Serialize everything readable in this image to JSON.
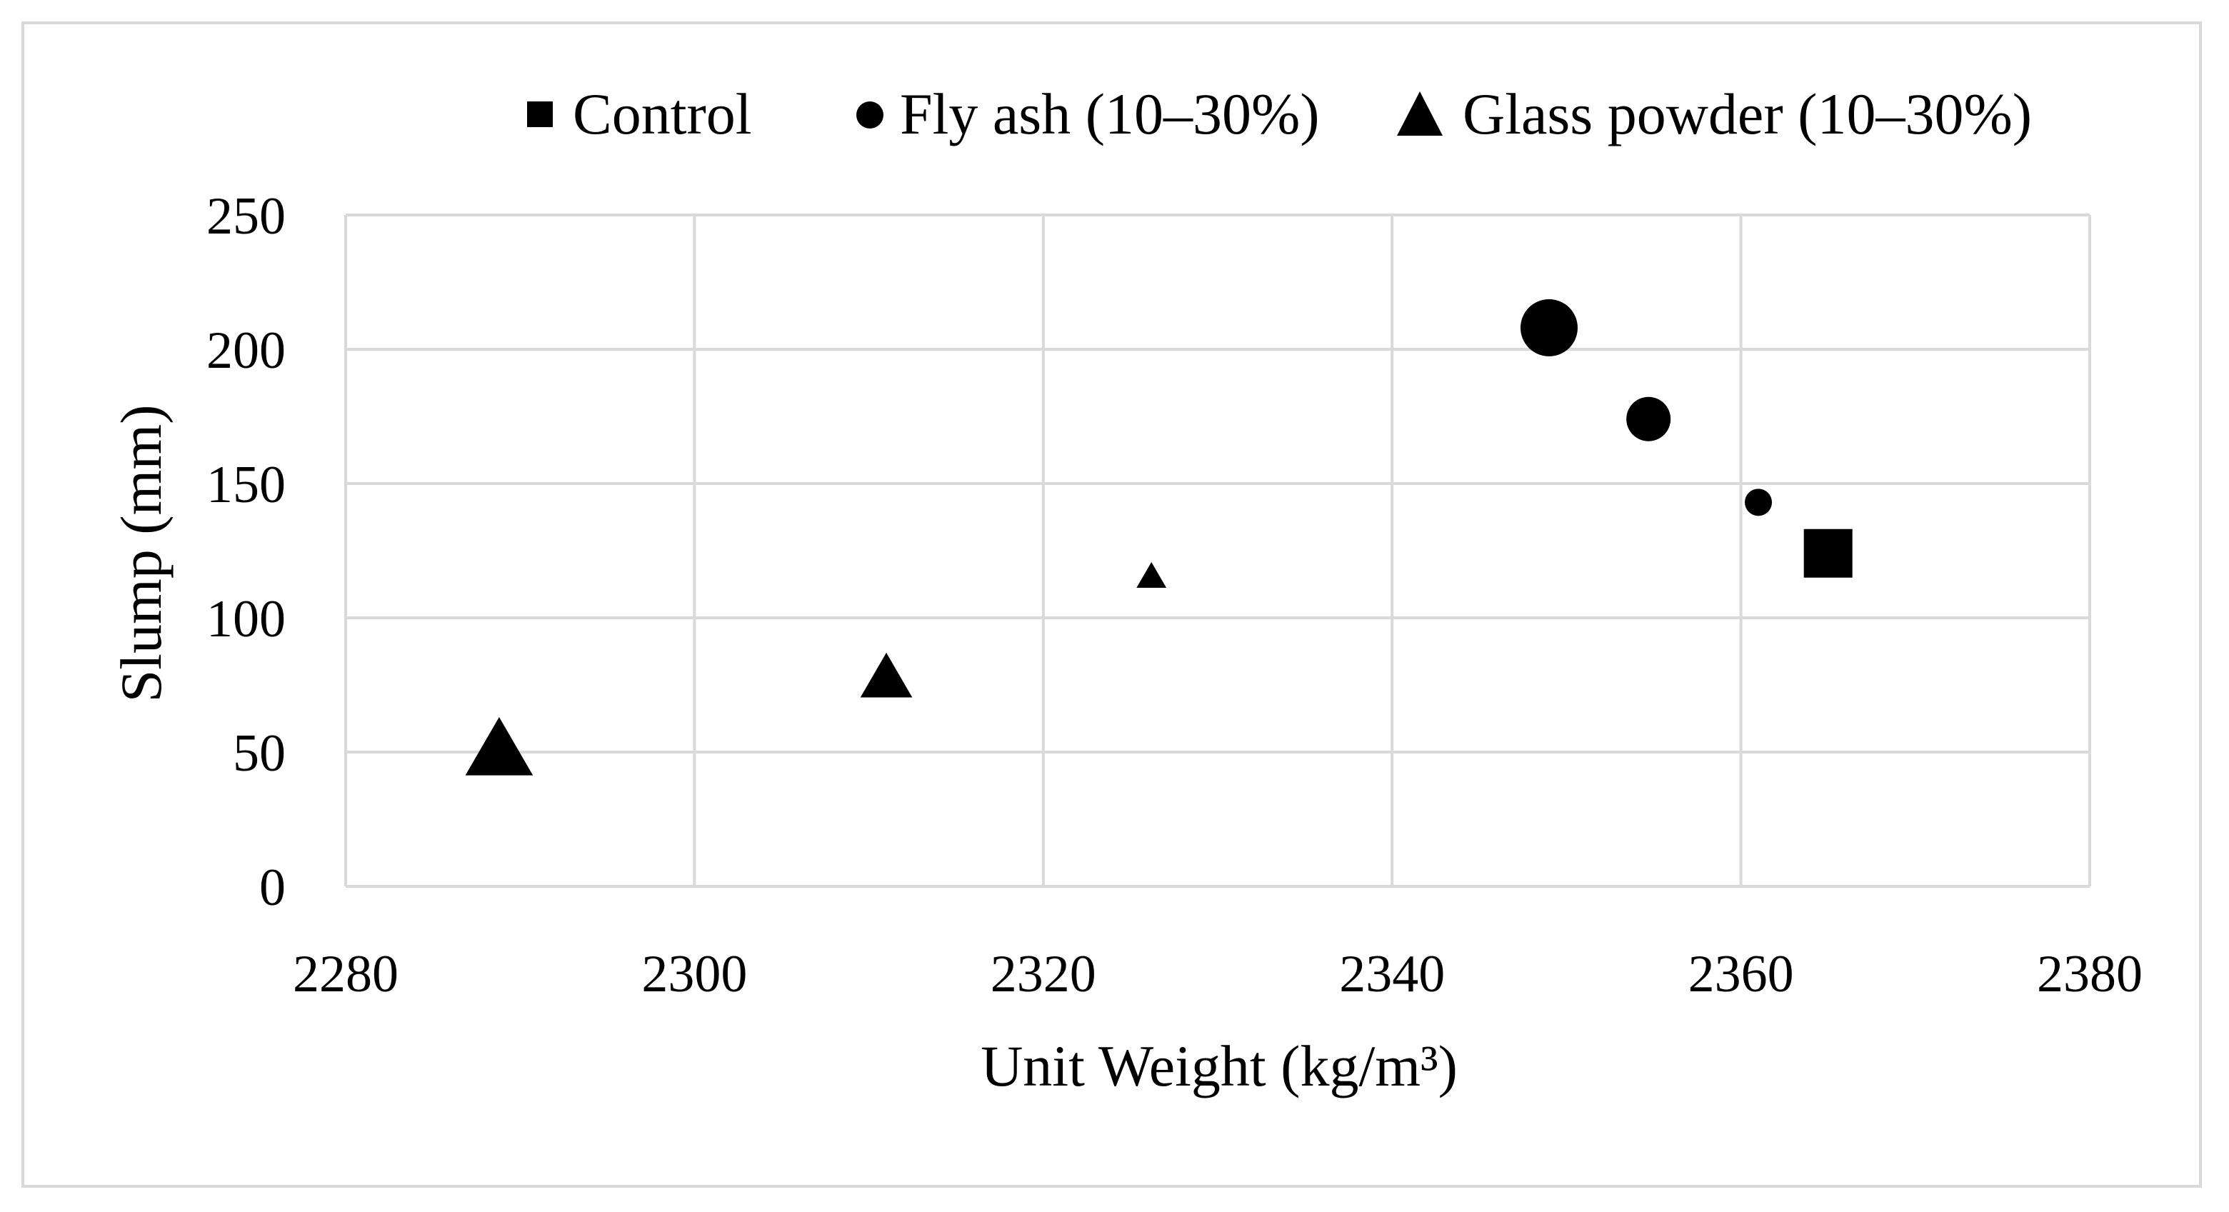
{
  "chart_data": {
    "type": "scatter",
    "title": "",
    "xlabel": "Unit Weight (kg/m³)",
    "ylabel": "Slump (mm)",
    "xlim": [
      2280,
      2380
    ],
    "ylim": [
      0,
      250
    ],
    "x_ticks": [
      2280,
      2300,
      2320,
      2340,
      2360,
      2380
    ],
    "y_ticks": [
      0,
      50,
      100,
      150,
      200,
      250
    ],
    "grid": true,
    "legend_position": "top",
    "colors": {
      "marker": "#000000",
      "grid": "#d9d9d9",
      "frame": "#d9d9d9"
    },
    "series": [
      {
        "name": "Control",
        "marker": "square",
        "points": [
          {
            "x": 2365,
            "y": 124
          }
        ]
      },
      {
        "name": "Fly ash (10–30%)",
        "marker": "circle",
        "points": [
          {
            "x": 2361,
            "y": 143
          },
          {
            "x": 2354.7,
            "y": 174
          },
          {
            "x": 2349,
            "y": 208
          }
        ]
      },
      {
        "name": "Glass powder (10–30%)",
        "marker": "triangle",
        "points": [
          {
            "x": 2326.2,
            "y": 115
          },
          {
            "x": 2311,
            "y": 77
          },
          {
            "x": 2288.8,
            "y": 50
          }
        ]
      }
    ]
  }
}
